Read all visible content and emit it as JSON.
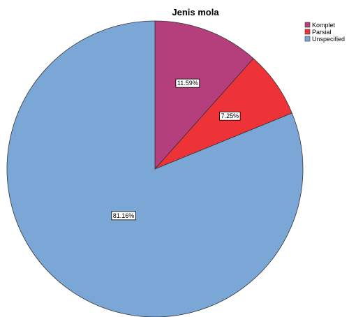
{
  "chart_data": {
    "type": "pie",
    "title": "Jenis mola",
    "legend_position": "top-right",
    "start_angle": "12 o'clock",
    "direction": "clockwise",
    "slices": [
      {
        "label": "Komplet",
        "value": 11.59,
        "display": "11.59%",
        "color": "#b43f7c"
      },
      {
        "label": "Parsial",
        "value": 7.25,
        "display": "7.25%",
        "color": "#ee3338"
      },
      {
        "label": "Unspecified",
        "value": 81.16,
        "display": "81.16%",
        "color": "#7aa7d6"
      }
    ]
  }
}
